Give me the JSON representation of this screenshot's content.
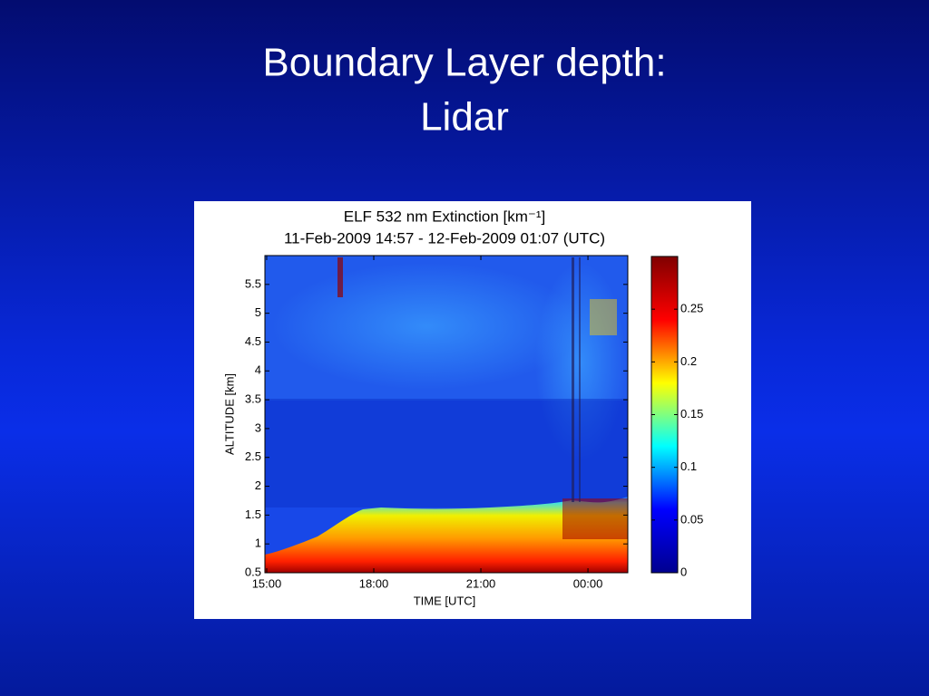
{
  "slide_title": [
    "Boundary Layer depth:",
    "Lidar"
  ],
  "chart_data": {
    "type": "heatmap",
    "title": [
      "ELF 532 nm Extinction [km⁻¹]",
      "11-Feb-2009 14:57 - 12-Feb-2009 01:07 (UTC)"
    ],
    "xlabel": "TIME [UTC]",
    "ylabel": "ALTITUDE [km]",
    "xlim": [
      14.95,
      25.1167
    ],
    "xticks": [
      {
        "value": 15,
        "label": "15:00"
      },
      {
        "value": 18,
        "label": "18:00"
      },
      {
        "value": 21,
        "label": "21:00"
      },
      {
        "value": 24,
        "label": "00:00"
      }
    ],
    "ylim": [
      0.5,
      6
    ],
    "yticks": [
      0.5,
      1,
      1.5,
      2,
      2.5,
      3,
      3.5,
      4,
      4.5,
      5,
      5.5
    ],
    "clim": [
      0,
      0.3
    ],
    "cticks": [
      0,
      0.05,
      0.1,
      0.15,
      0.2,
      0.25
    ],
    "colormap": [
      "#00008f",
      "#0000ff",
      "#00ffff",
      "#ffff00",
      "#ff0000",
      "#800000"
    ]
  }
}
